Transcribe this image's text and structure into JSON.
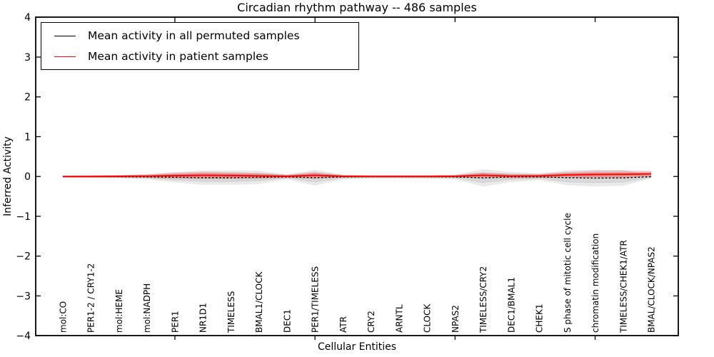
{
  "title": "Circadian rhythm pathway -- 486 samples",
  "legend": {
    "items": [
      {
        "label": "Mean activity in all permuted samples",
        "color": "#000000"
      },
      {
        "label": "Mean activity in patient samples",
        "color": "#ff0000"
      }
    ]
  },
  "chart_data": {
    "type": "line",
    "title": "Circadian rhythm pathway -- 486 samples",
    "xlabel": "Cellular Entities",
    "ylabel": "Inferred Activity",
    "ylim": [
      -4,
      4
    ],
    "yticks": [
      -4,
      -3,
      -2,
      -1,
      0,
      1,
      2,
      3,
      4
    ],
    "grid": false,
    "legend_position": "upper left",
    "categories": [
      "mol:CO",
      "PER1-2 / CRY1-2",
      "mol:HEME",
      "mol:NADPH",
      "PER1",
      "NR1D1",
      "TIMELESS",
      "BMAL1/CLOCK",
      "DEC1",
      "PER1/TIMELESS",
      "ATR",
      "CRY2",
      "ARNTL",
      "CLOCK",
      "NPAS2",
      "TIMELESS/CRY2",
      "DEC1/BMAL1",
      "CHEK1",
      "S phase of mitotic cell cycle",
      "chromatin modification",
      "TIMELESS/CHEK1/ATR",
      "BMAL/CLOCK/NPAS2"
    ],
    "series": [
      {
        "name": "Mean activity in all permuted samples",
        "color": "#000000",
        "style": "dashed",
        "values": [
          -0.005,
          -0.005,
          -0.005,
          -0.01,
          -0.02,
          -0.03,
          -0.03,
          -0.02,
          -0.01,
          -0.03,
          -0.01,
          -0.005,
          -0.005,
          -0.005,
          -0.01,
          -0.035,
          -0.01,
          -0.01,
          -0.03,
          -0.04,
          -0.035,
          -0.005
        ]
      },
      {
        "name": "Mean activity in patient samples",
        "color": "#ff0000",
        "style": "solid",
        "values": [
          0.0,
          0.0,
          0.005,
          0.01,
          0.02,
          0.03,
          0.025,
          0.015,
          0.005,
          0.03,
          0.005,
          0.0,
          0.0,
          0.0,
          0.005,
          0.03,
          0.01,
          0.015,
          0.04,
          0.05,
          0.055,
          0.065
        ]
      }
    ],
    "bands": [
      {
        "name": "permuted-range-outer",
        "center_series": 0,
        "fill": "#000000",
        "opacity": 0.08,
        "halfwidths": [
          0.015,
          0.02,
          0.03,
          0.05,
          0.12,
          0.17,
          0.17,
          0.16,
          0.05,
          0.19,
          0.05,
          0.035,
          0.035,
          0.04,
          0.05,
          0.21,
          0.12,
          0.07,
          0.18,
          0.2,
          0.19,
          0.03
        ]
      },
      {
        "name": "permuted-range-inner",
        "center_series": 0,
        "fill": "#000000",
        "opacity": 0.08,
        "halfwidths": [
          0.01,
          0.012,
          0.018,
          0.03,
          0.07,
          0.1,
          0.1,
          0.09,
          0.03,
          0.11,
          0.03,
          0.02,
          0.02,
          0.025,
          0.03,
          0.12,
          0.07,
          0.04,
          0.11,
          0.12,
          0.11,
          0.02
        ]
      },
      {
        "name": "patient-range-outer",
        "center_series": 1,
        "fill": "#ff0000",
        "opacity": 0.2,
        "halfwidths": [
          0.02,
          0.025,
          0.03,
          0.04,
          0.07,
          0.085,
          0.08,
          0.07,
          0.04,
          0.08,
          0.03,
          0.025,
          0.025,
          0.025,
          0.03,
          0.07,
          0.05,
          0.05,
          0.07,
          0.09,
          0.09,
          0.07
        ]
      },
      {
        "name": "patient-range-inner",
        "center_series": 1,
        "fill": "#ff0000",
        "opacity": 0.22,
        "halfwidths": [
          0.01,
          0.012,
          0.015,
          0.02,
          0.035,
          0.045,
          0.04,
          0.035,
          0.02,
          0.04,
          0.015,
          0.012,
          0.012,
          0.012,
          0.015,
          0.035,
          0.025,
          0.025,
          0.035,
          0.045,
          0.045,
          0.035
        ]
      }
    ]
  }
}
